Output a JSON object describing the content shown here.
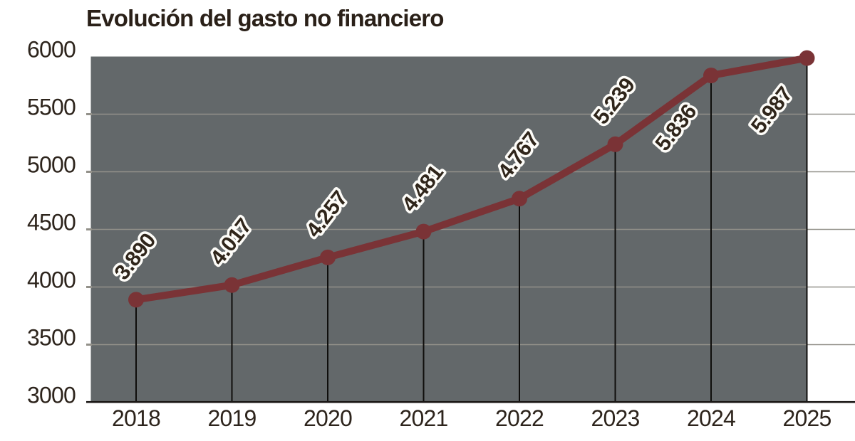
{
  "chart": {
    "title": "Evolución del gasto no financiero"
  },
  "chart_data": {
    "type": "line",
    "title": "Evolución del gasto no financiero",
    "x_labels": [
      "2018",
      "2019",
      "2020",
      "2021",
      "2022",
      "2023",
      "2024",
      "2025"
    ],
    "values": [
      3890,
      4017,
      4257,
      4481,
      4767,
      5239,
      5836,
      5987
    ],
    "point_labels": [
      "3.890",
      "4.017",
      "4.257",
      "4.481",
      "4.767",
      "5.239",
      "5.836",
      "5.987"
    ],
    "point_label_placement": [
      "above",
      "above",
      "above",
      "above",
      "above",
      "above",
      "below",
      "below"
    ],
    "y_ticks": [
      3000,
      3500,
      4000,
      4500,
      5000,
      5500,
      6000
    ],
    "y_tick_labels": [
      "3000",
      "3500",
      "4000",
      "4500",
      "5000",
      "5500",
      "6000"
    ],
    "ylim": [
      3000,
      6000
    ],
    "xlabel": "",
    "ylabel": "",
    "grid": "horizontal",
    "legend": "none",
    "colors": {
      "line": "#7a3336",
      "marker": "#7a3336",
      "plot_background": "#63686a",
      "gridline": "#93918a",
      "drop_line": "#0f0e0c",
      "axis_line": "#1a1715",
      "title_text": "#2a2018",
      "tick_text": "#2d241c",
      "point_label_text": "#2f251a",
      "point_label_outline": "#fdfcf8",
      "page_background": "#ffffff"
    }
  }
}
